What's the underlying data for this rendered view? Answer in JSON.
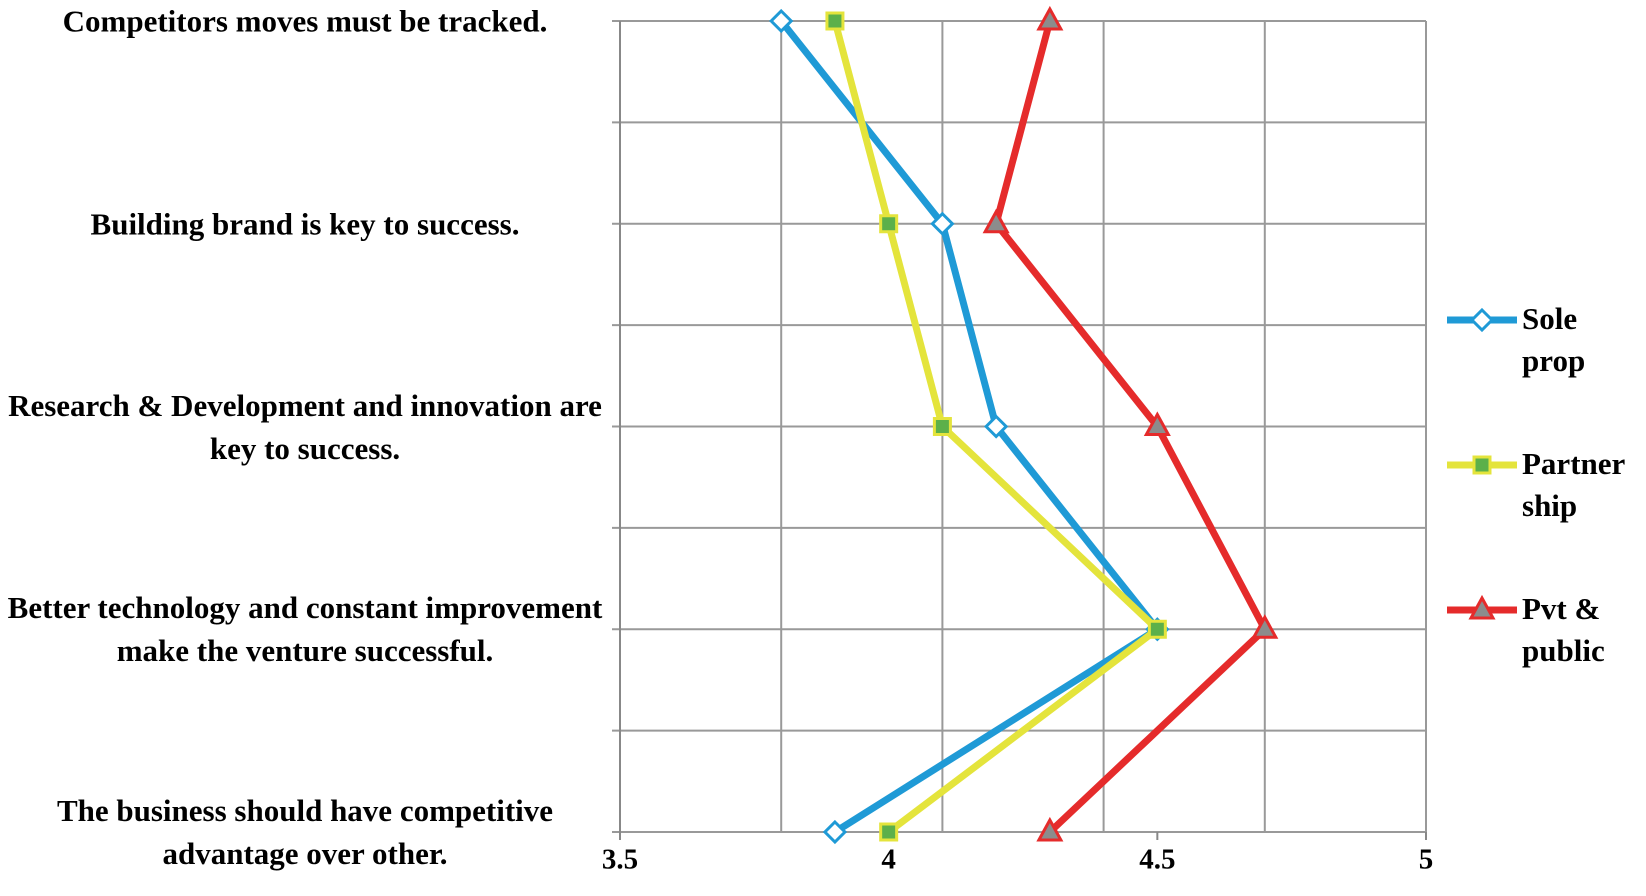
{
  "chart_data": {
    "type": "line",
    "categories": [
      "Competitors moves must be tracked.",
      "Building brand is key to success.",
      "Research & Development and innovation are key to success.",
      "Better technology and constant improvement make the venture successful.",
      "The business should have competitive advantage over other."
    ],
    "series": [
      {
        "name": "Sole prop",
        "color": "#1f9ad6",
        "marker": "diamond",
        "values": [
          3.8,
          4.1,
          4.2,
          4.5,
          3.9
        ]
      },
      {
        "name": "Partner ship",
        "color": "#e4e43c",
        "marker": "square",
        "values": [
          3.9,
          4.0,
          4.1,
          4.5,
          4.0
        ]
      },
      {
        "name": "Pvt & public",
        "color": "#e52b2b",
        "marker": "triangle",
        "values": [
          4.3,
          4.2,
          4.5,
          4.7,
          4.3
        ]
      }
    ],
    "xlim": [
      3.5,
      5
    ],
    "xticks": [
      3.5,
      4,
      4.5,
      5
    ],
    "xgrid": [
      3.5,
      3.8,
      4.1,
      4.4,
      4.7,
      5
    ],
    "grid": true,
    "legend": "right"
  }
}
